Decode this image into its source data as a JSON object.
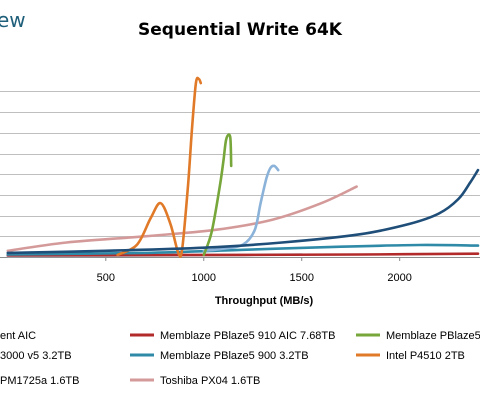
{
  "logo_text": "ew",
  "chart_data": {
    "type": "line",
    "title": "Sequential Write 64K",
    "xlabel": "Throughput (MB/s)",
    "ylabel": "",
    "xlim": [
      -40,
      2410
    ],
    "ylim": [
      0,
      10
    ],
    "x_ticks": [
      500,
      1000,
      1500,
      2000
    ],
    "y_gridlines": [
      1,
      2,
      3,
      4,
      5,
      6,
      7,
      8
    ],
    "grid": true,
    "legend_position": "bottom",
    "series": [
      {
        "name": "…ent AIC",
        "color": "#1f4e79",
        "x": [
          0,
          500,
          1000,
          1400,
          1800,
          2050,
          2200,
          2300,
          2360,
          2400
        ],
        "y": [
          0.2,
          0.3,
          0.45,
          0.7,
          1.1,
          1.6,
          2.1,
          2.8,
          3.6,
          4.2
        ]
      },
      {
        "name": "Memblaze PBlaze5 910 AIC 7.68TB",
        "color": "#b22a2a",
        "x": [
          0,
          600,
          1200,
          1800,
          2400
        ],
        "y": [
          0.08,
          0.09,
          0.1,
          0.12,
          0.16
        ]
      },
      {
        "name": "Memblaze PBlaze5…",
        "color": "#77a63b",
        "x": [
          1000,
          1040,
          1080,
          1100,
          1115,
          1135,
          1140
        ],
        "y": [
          0.1,
          1.2,
          3.3,
          4.6,
          5.7,
          5.8,
          4.4
        ]
      },
      {
        "name": "…3000 v5 3.2TB",
        "color": "#8bb2d8",
        "x": [
          1000,
          1100,
          1200,
          1260,
          1290,
          1320,
          1340,
          1360,
          1380
        ],
        "y": [
          0.3,
          0.4,
          0.6,
          1.3,
          2.6,
          3.8,
          4.3,
          4.4,
          4.2
        ]
      },
      {
        "name": "Memblaze PBlaze5 900 3.2TB",
        "color": "#2f8aa8",
        "x": [
          0,
          700,
          1200,
          1700,
          2100,
          2400
        ],
        "y": [
          0.12,
          0.2,
          0.35,
          0.5,
          0.58,
          0.55
        ]
      },
      {
        "name": "Intel P4510 2TB",
        "color": "#e07a28",
        "x": [
          560,
          660,
          730,
          780,
          830,
          870,
          890,
          920,
          940,
          960,
          975,
          985
        ],
        "y": [
          0.1,
          0.6,
          1.9,
          2.6,
          1.6,
          0.2,
          0.4,
          3.5,
          6.2,
          8.4,
          8.6,
          8.4
        ]
      },
      {
        "name": "…PM1725a 1.6TB",
        "color": "#aab8c8",
        "x": [
          0,
          400,
          800,
          1200,
          1500
        ],
        "y": [
          0.05,
          0.06,
          0.08,
          0.1,
          0.12
        ]
      },
      {
        "name": "Toshiba PX04 1.6TB",
        "color": "#d49a9a",
        "x": [
          0,
          300,
          700,
          1050,
          1350,
          1600,
          1780
        ],
        "y": [
          0.3,
          0.7,
          1.0,
          1.3,
          1.8,
          2.6,
          3.4
        ]
      }
    ],
    "legend": [
      {
        "label": "ent AIC",
        "series": 0
      },
      {
        "label": "Memblaze PBlaze5 910 AIC 7.68TB",
        "series": 1
      },
      {
        "label": "Memblaze PBlaze5",
        "series": 2
      },
      {
        "label": "3000 v5 3.2TB",
        "series": 3
      },
      {
        "label": "Memblaze PBlaze5 900 3.2TB",
        "series": 4
      },
      {
        "label": "Intel P4510 2TB",
        "series": 5
      },
      {
        "label": "PM1725a 1.6TB",
        "series": 6
      },
      {
        "label": "Toshiba PX04 1.6TB",
        "series": 7
      }
    ]
  }
}
